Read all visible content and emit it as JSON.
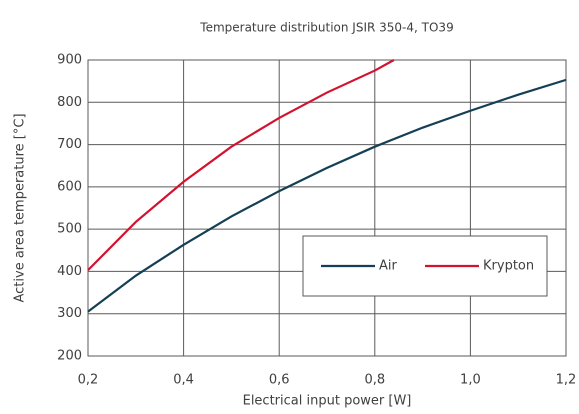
{
  "chart_data": {
    "type": "line",
    "title": "Temperature distribution JSIR 350-4, TO39",
    "x_label": "Electrical input power [W]",
    "y_label": "Active area temperature [°C]",
    "xlim": [
      0.2,
      1.2
    ],
    "xticks": [
      {
        "value": 0.2,
        "label": "0,2"
      },
      {
        "value": 0.4,
        "label": "0,4"
      },
      {
        "value": 0.6,
        "label": "0,6"
      },
      {
        "value": 0.8,
        "label": "0,8"
      },
      {
        "value": 1.0,
        "label": "1,0"
      },
      {
        "value": 1.2,
        "label": "1,2"
      }
    ],
    "ylim": [
      200,
      900
    ],
    "yticks": [
      200,
      300,
      400,
      500,
      600,
      700,
      800,
      900
    ],
    "grid": true,
    "legend": "right",
    "series": [
      {
        "name": "Air",
        "color": "#143f55",
        "x": [
          0.2,
          0.3,
          0.4,
          0.5,
          0.6,
          0.7,
          0.8,
          0.9,
          1.0,
          1.1,
          1.2
        ],
        "values": [
          305,
          390,
          463,
          530,
          590,
          645,
          695,
          740,
          780,
          818,
          853
        ]
      },
      {
        "name": "Krypton",
        "color": "#d2122e",
        "x": [
          0.2,
          0.3,
          0.4,
          0.5,
          0.6,
          0.7,
          0.8,
          0.84
        ],
        "values": [
          403,
          517,
          612,
          695,
          763,
          823,
          875,
          900
        ]
      }
    ]
  }
}
